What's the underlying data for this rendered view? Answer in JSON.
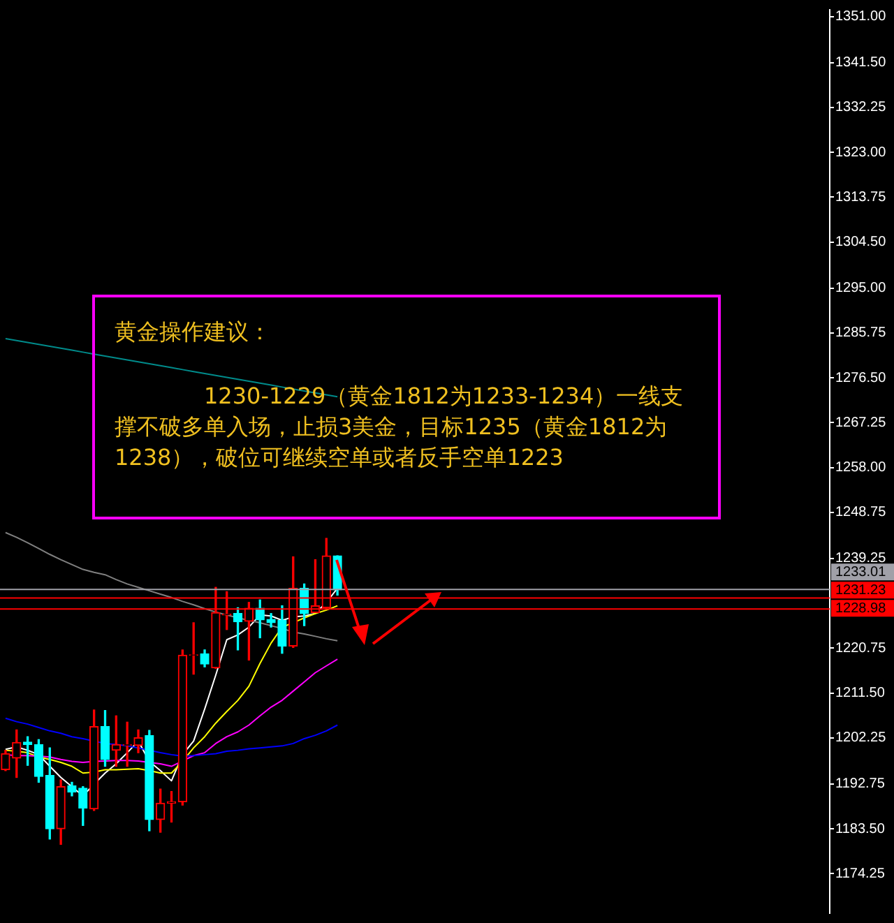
{
  "chart_data": {
    "type": "candlestick",
    "categories": [
      null,
      null,
      null,
      null,
      null,
      null,
      null,
      null,
      null,
      null,
      null,
      null,
      null,
      null,
      null,
      null,
      null,
      null,
      null,
      null,
      null,
      null,
      null,
      null,
      null,
      null,
      null,
      null,
      null,
      null,
      null,
      null,
      null,
      null,
      null,
      null,
      null,
      null,
      null,
      null,
      null,
      null,
      null,
      null,
      null,
      null,
      null,
      null,
      null,
      null,
      null,
      null,
      null,
      null,
      null,
      null,
      null,
      null,
      null,
      null,
      null,
      null,
      null,
      null,
      null,
      null,
      null,
      null,
      null,
      null,
      null,
      null,
      null,
      null,
      null
    ],
    "ohlc": [
      [
        1195.7,
        1199.7,
        1195.5,
        1199.0
      ],
      [
        1198.1,
        1203.9,
        1194.1,
        1201.3
      ],
      [
        1201.4,
        1202.5,
        1196.6,
        1200.9
      ],
      [
        1200.9,
        1201.9,
        1193.1,
        1194.3
      ],
      [
        1194.5,
        1200.2,
        1181.4,
        1183.5
      ],
      [
        1183.5,
        1193.6,
        1180.3,
        1192.2
      ],
      [
        1192.4,
        1193.1,
        1190.3,
        1191.1
      ],
      [
        1191.9,
        1192.2,
        1184.2,
        1187.8
      ],
      [
        1187.6,
        1208.0,
        1187.3,
        1204.6
      ],
      [
        1204.6,
        1207.9,
        1196.4,
        1197.8
      ],
      [
        1199.7,
        1206.8,
        1196.4,
        1200.9
      ],
      [
        1200.7,
        1205.5,
        1196.4,
        1200.9
      ],
      [
        1200.7,
        1203.9,
        1199.2,
        1202.3
      ],
      [
        1202.7,
        1203.8,
        1183.1,
        1185.4
      ],
      [
        1185.4,
        1191.7,
        1182.8,
        1188.8
      ],
      [
        1188.8,
        1191.2,
        1184.9,
        1189.1
      ],
      [
        1189.1,
        1220.4,
        1188.4,
        1219.3
      ],
      [
        1219.3,
        1226.0,
        1215.4,
        1219.4
      ],
      [
        1219.6,
        1220.4,
        1216.9,
        1217.5
      ],
      [
        1216.7,
        1233.3,
        1216.6,
        1228.1
      ],
      [
        1227.6,
        1232.4,
        1224.6,
        1227.8
      ],
      [
        1227.9,
        1229.1,
        1220.4,
        1226.2
      ],
      [
        1226.3,
        1230.2,
        1218.3,
        1229.0
      ],
      [
        1229.0,
        1230.7,
        1222.9,
        1226.6
      ],
      [
        1226.7,
        1227.9,
        1225.1,
        1226.0
      ],
      [
        1226.5,
        1229.5,
        1219.7,
        1221.2
      ],
      [
        1221.2,
        1239.6,
        1220.9,
        1233.1
      ],
      [
        1233.1,
        1234.0,
        1225.4,
        1227.9
      ],
      [
        1228.1,
        1239.0,
        1228.1,
        1229.5
      ],
      [
        1229.1,
        1243.4,
        1228.8,
        1239.8
      ],
      [
        1239.8,
        1239.8,
        1231.7,
        1232.8
      ],
      null,
      null,
      null,
      null,
      null,
      null,
      null,
      null,
      null,
      null,
      null,
      null,
      null,
      null,
      null,
      null,
      null,
      null,
      null,
      null,
      null,
      null,
      null,
      null,
      null,
      null,
      null,
      null,
      null,
      null,
      null,
      null,
      null,
      null,
      null,
      null,
      null,
      null,
      null,
      null,
      null,
      null,
      null,
      null
    ],
    "colors": [
      "#ff0000",
      "#ff0000",
      "#00ffff",
      "#00ffff",
      "#00ffff",
      "#ff0000",
      "#00ffff",
      "#00ffff",
      "#ff0000",
      "#00ffff",
      "#ff0000",
      "#ff0000",
      "#ff0000",
      "#00ffff",
      "#ff0000",
      "#ff0000",
      "#ff0000",
      "#ff0000",
      "#00ffff",
      "#ff0000",
      "#ff0000",
      "#00ffff",
      "#ff0000",
      "#00ffff",
      "#00ffff",
      "#00ffff",
      "#ff0000",
      "#00ffff",
      "#ff0000",
      "#ff0000",
      "#00ffff",
      null,
      null,
      null,
      null,
      null,
      null,
      null,
      null,
      null,
      null,
      null,
      null,
      null,
      null,
      null,
      null,
      null,
      null,
      null,
      null,
      null,
      null,
      null,
      null,
      null,
      null,
      null,
      null,
      null,
      null,
      null,
      null,
      null,
      null,
      null,
      null,
      null,
      null,
      null,
      null,
      null,
      null,
      null,
      null
    ],
    "series": [
      {
        "type": "line",
        "color": "#008b8b",
        "values": [
          1284.6,
          1284.2,
          1283.8,
          1283.4,
          1283.0,
          1282.6,
          1282.2,
          1281.8,
          1281.4,
          1281.0,
          1280.6,
          1280.2,
          1279.8,
          1279.4,
          1279.0,
          1278.6,
          1278.2,
          1277.8,
          1277.4,
          1277.0,
          1276.6,
          1276.2,
          1275.8,
          1275.4,
          1275.0,
          1274.6,
          1274.2,
          1273.8,
          1273.4,
          1273.0,
          1272.6,
          null,
          null,
          null,
          null,
          null,
          null,
          null,
          null,
          null,
          null,
          null,
          null,
          null,
          null,
          null,
          null,
          null,
          null,
          null,
          null,
          null,
          null,
          null,
          null,
          null,
          null,
          null,
          null,
          null,
          null,
          null,
          null,
          null,
          null,
          null,
          null,
          null,
          null,
          null,
          null,
          null,
          null,
          null,
          null
        ]
      },
      {
        "type": "line",
        "color": "#808080",
        "values": [
          1244.6,
          1243.6,
          1242.5,
          1241.3,
          1240.1,
          1239.0,
          1238.0,
          1237.0,
          1236.4,
          1235.9,
          1234.9,
          1234.0,
          1233.3,
          1232.6,
          1231.9,
          1231.2,
          1230.4,
          1229.7,
          1228.9,
          1228.2,
          1227.6,
          1227.0,
          1226.5,
          1226.0,
          1225.4,
          1224.8,
          1224.1,
          1223.7,
          1223.2,
          1222.7,
          1222.3,
          null,
          null,
          null,
          null,
          null,
          null,
          null,
          null,
          null,
          null,
          null,
          null,
          null,
          null,
          null,
          null,
          null,
          null,
          null,
          null,
          null,
          null,
          null,
          null,
          null,
          null,
          null,
          null,
          null,
          null,
          null,
          null,
          null,
          null,
          null,
          null,
          null,
          null,
          null,
          null,
          null,
          null,
          null,
          null
        ]
      },
      {
        "type": "line",
        "color": "#0000ff",
        "values": [
          1206.3,
          1205.6,
          1205.1,
          1204.4,
          1203.7,
          1203.2,
          1202.5,
          1202.1,
          1201.6,
          1201.1,
          1200.9,
          1200.6,
          1200.2,
          1199.7,
          1199.2,
          1198.8,
          1198.5,
          1198.6,
          1198.8,
          1199.0,
          1199.5,
          1199.7,
          1200.0,
          1200.2,
          1200.4,
          1200.6,
          1201.1,
          1202.1,
          1202.8,
          1203.7,
          1204.9,
          null,
          null,
          null,
          null,
          null,
          null,
          null,
          null,
          null,
          null,
          null,
          null,
          null,
          null,
          null,
          null,
          null,
          null,
          null,
          null,
          null,
          null,
          null,
          null,
          null,
          null,
          null,
          null,
          null,
          null,
          null,
          null,
          null,
          null,
          null,
          null,
          null,
          null,
          null,
          null,
          null,
          null,
          null,
          null
        ]
      },
      {
        "type": "line",
        "color": "#ff00ff",
        "values": [
          1198.8,
          1198.6,
          1198.6,
          1198.5,
          1198.3,
          1197.8,
          1197.4,
          1197.2,
          1197.4,
          1197.5,
          1197.6,
          1197.6,
          1197.5,
          1197.2,
          1196.9,
          1196.4,
          1197.5,
          1198.6,
          1199.2,
          1201.1,
          1202.5,
          1203.5,
          1204.9,
          1206.8,
          1208.6,
          1210.0,
          1211.9,
          1213.8,
          1215.7,
          1217.1,
          1218.5,
          null,
          null,
          null,
          null,
          null,
          null,
          null,
          null,
          null,
          null,
          null,
          null,
          null,
          null,
          null,
          null,
          null,
          null,
          null,
          null,
          null,
          null,
          null,
          null,
          null,
          null,
          null,
          null,
          null,
          null,
          null,
          null,
          null,
          null,
          null,
          null,
          null,
          null,
          null,
          null,
          null,
          null,
          null,
          null
        ]
      },
      {
        "type": "line",
        "color": "#ffff00",
        "values": [
          1199.7,
          1199.5,
          1199.2,
          1198.3,
          1197.8,
          1197.2,
          1196.4,
          1195.0,
          1195.2,
          1195.7,
          1195.7,
          1195.8,
          1195.9,
          1195.5,
          1195.0,
          1195.0,
          1197.4,
          1200.2,
          1202.5,
          1205.3,
          1207.7,
          1210.0,
          1212.9,
          1217.6,
          1221.8,
          1225.1,
          1226.0,
          1227.0,
          1227.9,
          1228.6,
          1229.5,
          null,
          null,
          null,
          null,
          null,
          null,
          null,
          null,
          null,
          null,
          null,
          null,
          null,
          null,
          null,
          null,
          null,
          null,
          null,
          null,
          null,
          null,
          null,
          null,
          null,
          null,
          null,
          null,
          null,
          null,
          null,
          null,
          null,
          null,
          null,
          null,
          null,
          null,
          null,
          null,
          null,
          null,
          null,
          null
        ]
      },
      {
        "type": "line",
        "color": "#ffffff",
        "values": [
          1199.9,
          1200.4,
          1199.7,
          1198.8,
          1196.4,
          1194.1,
          1192.2,
          1190.3,
          1192.7,
          1195.0,
          1196.9,
          1199.2,
          1201.6,
          1197.4,
          1195.5,
          1193.4,
          1198.8,
          1201.6,
          1208.2,
          1215.2,
          1222.5,
          1223.5,
          1225.1,
          1227.6,
          1227.4,
          1226.5,
          1227.2,
          1227.4,
          1227.9,
          1230.2,
          1233.1,
          null,
          null,
          null,
          null,
          null,
          null,
          null,
          null,
          null,
          null,
          null,
          null,
          null,
          null,
          null,
          null,
          null,
          null,
          null,
          null,
          null,
          null,
          null,
          null,
          null,
          null,
          null,
          null,
          null,
          null,
          null,
          null,
          null,
          null,
          null,
          null,
          null,
          null,
          null,
          null,
          null,
          null,
          null,
          null
        ]
      }
    ],
    "ylim": [
      1166.1,
      1352.4
    ],
    "yticks": [
      {
        "value": 1351,
        "label": "1351.00"
      },
      {
        "value": 1341.5,
        "label": "1341.50"
      },
      {
        "value": 1332.25,
        "label": "1332.25"
      },
      {
        "value": 1323,
        "label": "1323.00"
      },
      {
        "value": 1313.75,
        "label": "1313.75"
      },
      {
        "value": 1304.5,
        "label": "1304.50"
      },
      {
        "value": 1295,
        "label": "1295.00"
      },
      {
        "value": 1285.75,
        "label": "1285.75"
      },
      {
        "value": 1276.5,
        "label": "1276.50"
      },
      {
        "value": 1267.25,
        "label": "1267.25"
      },
      {
        "value": 1258,
        "label": "1258.00"
      },
      {
        "value": 1248.75,
        "label": "1248.75"
      },
      {
        "value": 1239.25,
        "label": "1239.25"
      },
      {
        "value": 1220.75,
        "label": "1220.75"
      },
      {
        "value": 1211.5,
        "label": "1211.50"
      },
      {
        "value": 1202.25,
        "label": "1202.25"
      },
      {
        "value": 1192.75,
        "label": "1192.75"
      },
      {
        "value": 1183.5,
        "label": "1183.50"
      },
      {
        "value": 1174.25,
        "label": "1174.25"
      }
    ],
    "tick_labels": "y",
    "ref_lines": [
      {
        "axis": "y",
        "value": 1233.01,
        "label": "1233.01",
        "color": "#a0a0a8"
      },
      {
        "axis": "y",
        "value": 1231.23,
        "label": "1231.23",
        "color": "#ff0000"
      },
      {
        "axis": "y",
        "value": 1228.98,
        "label": "1228.98",
        "color": "#ff0000"
      }
    ],
    "annotations": [
      "黄金操作建议：",
      "1230-1229（黄金1812为1233-1234）一线支撑不破多单入场，止损3美金，目标1235（黄金1812为1238），破位可继续空单或者反手空单1223"
    ]
  }
}
